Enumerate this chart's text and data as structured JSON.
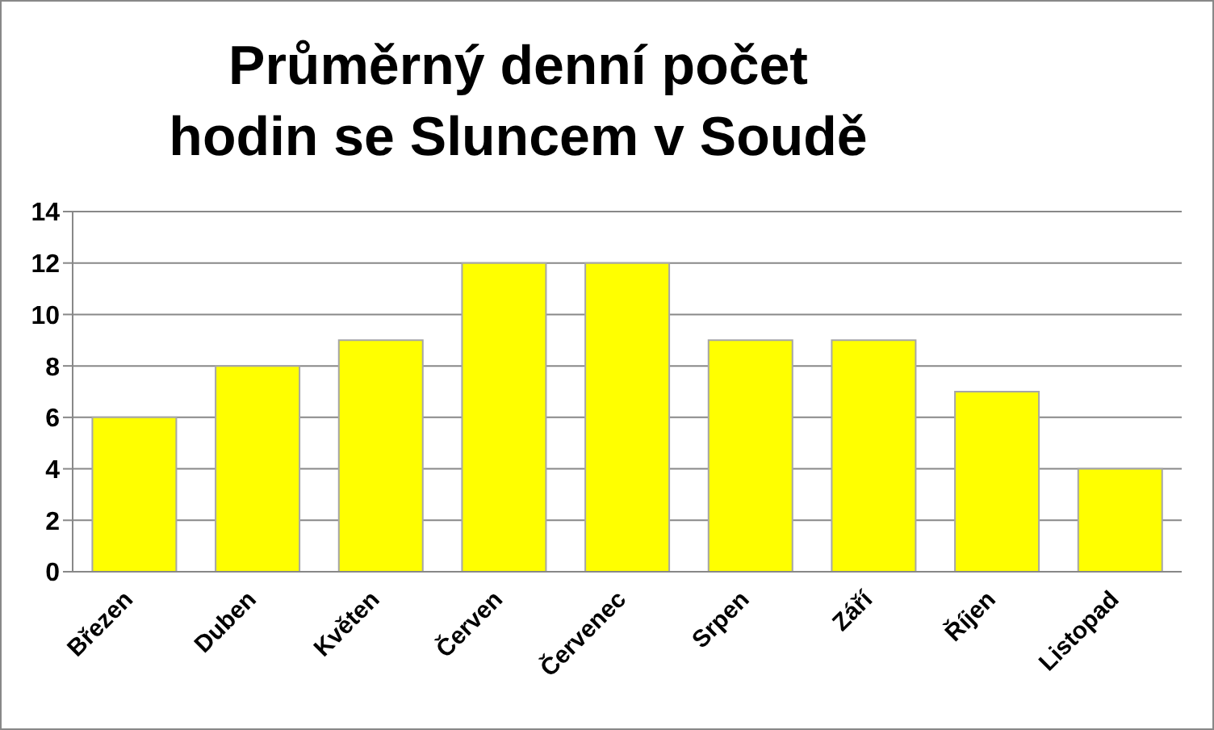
{
  "chart_data": {
    "type": "bar",
    "title": "Průměrný denní počet hodin se Sluncem v Soudě",
    "categories": [
      "Březen",
      "Duben",
      "Květen",
      "Červen",
      "Červenec",
      "Srpen",
      "Září",
      "Říjen",
      "Listopad"
    ],
    "values": [
      6,
      8,
      9,
      12,
      12,
      9,
      9,
      7,
      4
    ],
    "color": "#ffff00",
    "ylim": [
      0,
      14
    ],
    "yticks": [
      0,
      2,
      4,
      6,
      8,
      10,
      12,
      14
    ],
    "grid": "y"
  }
}
